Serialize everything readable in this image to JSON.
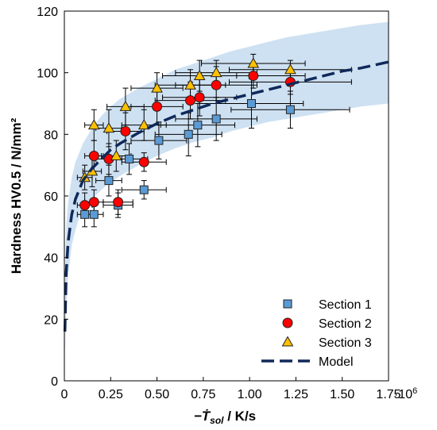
{
  "chart_data": {
    "type": "scatter",
    "ylabel": "Hardness HV0.5 / N/mm²",
    "xlabel": {
      "main": "−Ṫ",
      "sub": "sol",
      "unit": " / K/s"
    },
    "x_multiplier_label": "·10",
    "x_multiplier_exp": "6",
    "xlim": [
      0,
      1.75
    ],
    "ylim": [
      0,
      120
    ],
    "xticks": [
      "0",
      "0.25",
      "0.50",
      "0.75",
      "1.00",
      "1.25",
      "1.50",
      "1.75"
    ],
    "xtick_values": [
      0,
      0.25,
      0.5,
      0.75,
      1.0,
      1.25,
      1.5,
      1.75
    ],
    "yticks": [
      "0",
      "20",
      "40",
      "60",
      "80",
      "100",
      "120"
    ],
    "ytick_values": [
      0,
      20,
      40,
      60,
      80,
      100,
      120
    ],
    "grid": false,
    "legend_position": "bottom-right",
    "colors": {
      "section1": "#5b9bd5",
      "section2": "#ff0000",
      "section3": "#ffc000",
      "model": "#10295a",
      "band": "#c5dcf0"
    },
    "series": [
      {
        "name": "Section 1",
        "marker": "square",
        "points": [
          {
            "x": 0.11,
            "y": 54,
            "xerr": 0.04,
            "yerr": 4
          },
          {
            "x": 0.16,
            "y": 54,
            "xerr": 0.05,
            "yerr": 4
          },
          {
            "x": 0.24,
            "y": 65,
            "xerr": 0.07,
            "yerr": 5
          },
          {
            "x": 0.29,
            "y": 57,
            "xerr": 0.08,
            "yerr": 4
          },
          {
            "x": 0.35,
            "y": 72,
            "xerr": 0.1,
            "yerr": 5
          },
          {
            "x": 0.43,
            "y": 62,
            "xerr": 0.12,
            "yerr": 3
          },
          {
            "x": 0.51,
            "y": 78,
            "xerr": 0.15,
            "yerr": 6
          },
          {
            "x": 0.67,
            "y": 80,
            "xerr": 0.18,
            "yerr": 7
          },
          {
            "x": 0.72,
            "y": 83,
            "xerr": 0.2,
            "yerr": 7
          },
          {
            "x": 0.82,
            "y": 85,
            "xerr": 0.22,
            "yerr": 7
          },
          {
            "x": 1.01,
            "y": 90,
            "xerr": 0.28,
            "yerr": 8
          },
          {
            "x": 1.22,
            "y": 88,
            "xerr": 0.32,
            "yerr": 6
          }
        ]
      },
      {
        "name": "Section 2",
        "marker": "circle",
        "points": [
          {
            "x": 0.11,
            "y": 57,
            "xerr": 0.04,
            "yerr": 4
          },
          {
            "x": 0.16,
            "y": 58,
            "xerr": 0.05,
            "yerr": 4
          },
          {
            "x": 0.16,
            "y": 73,
            "xerr": 0.05,
            "yerr": 5
          },
          {
            "x": 0.24,
            "y": 72,
            "xerr": 0.07,
            "yerr": 5
          },
          {
            "x": 0.29,
            "y": 58,
            "xerr": 0.08,
            "yerr": 4
          },
          {
            "x": 0.33,
            "y": 81,
            "xerr": 0.1,
            "yerr": 6
          },
          {
            "x": 0.43,
            "y": 71,
            "xerr": 0.12,
            "yerr": 3
          },
          {
            "x": 0.5,
            "y": 89,
            "xerr": 0.14,
            "yerr": 6
          },
          {
            "x": 0.68,
            "y": 91,
            "xerr": 0.19,
            "yerr": 6
          },
          {
            "x": 0.73,
            "y": 92,
            "xerr": 0.2,
            "yerr": 6
          },
          {
            "x": 0.82,
            "y": 96,
            "xerr": 0.22,
            "yerr": 6
          },
          {
            "x": 1.02,
            "y": 99,
            "xerr": 0.28,
            "yerr": 4
          },
          {
            "x": 1.22,
            "y": 97,
            "xerr": 0.33,
            "yerr": 4
          }
        ]
      },
      {
        "name": "Section 3",
        "marker": "triangle",
        "points": [
          {
            "x": 0.11,
            "y": 66,
            "xerr": 0.04,
            "yerr": 4
          },
          {
            "x": 0.15,
            "y": 68,
            "xerr": 0.05,
            "yerr": 5
          },
          {
            "x": 0.16,
            "y": 83,
            "xerr": 0.05,
            "yerr": 5
          },
          {
            "x": 0.24,
            "y": 82,
            "xerr": 0.07,
            "yerr": 6
          },
          {
            "x": 0.28,
            "y": 73,
            "xerr": 0.08,
            "yerr": 5
          },
          {
            "x": 0.33,
            "y": 89,
            "xerr": 0.1,
            "yerr": 6
          },
          {
            "x": 0.43,
            "y": 83,
            "xerr": 0.12,
            "yerr": 5
          },
          {
            "x": 0.5,
            "y": 95,
            "xerr": 0.14,
            "yerr": 5
          },
          {
            "x": 0.68,
            "y": 96,
            "xerr": 0.19,
            "yerr": 5
          },
          {
            "x": 0.73,
            "y": 99,
            "xerr": 0.2,
            "yerr": 5
          },
          {
            "x": 0.82,
            "y": 100,
            "xerr": 0.22,
            "yerr": 4
          },
          {
            "x": 1.02,
            "y": 103,
            "xerr": 0.28,
            "yerr": 3
          },
          {
            "x": 1.22,
            "y": 101,
            "xerr": 0.33,
            "yerr": 3
          }
        ]
      },
      {
        "name": "Model",
        "type": "line",
        "style": "dashed",
        "x": [
          0.003,
          0.01,
          0.02,
          0.04,
          0.06,
          0.08,
          0.1,
          0.15,
          0.2,
          0.25,
          0.3,
          0.4,
          0.5,
          0.6,
          0.7,
          0.8,
          0.9,
          1.0,
          1.1,
          1.2,
          1.3,
          1.4,
          1.5,
          1.6,
          1.75
        ],
        "y": [
          16,
          35,
          45,
          54,
          59,
          62,
          65,
          69,
          72,
          75,
          77,
          80.5,
          83.5,
          86,
          88,
          90,
          91.5,
          93,
          94.5,
          96,
          97.5,
          99,
          100.5,
          101.5,
          103.5
        ],
        "band_upper": [
          30,
          50,
          58,
          66,
          71,
          74,
          77,
          82,
          86,
          89,
          91.5,
          95,
          98,
          101,
          103,
          105,
          107,
          108.5,
          110,
          111.5,
          112.5,
          113.5,
          114.5,
          115.5,
          116.5
        ],
        "band_lower": [
          8,
          24,
          34,
          44,
          49,
          53,
          55,
          59,
          62,
          64.5,
          66.5,
          70,
          73,
          75.5,
          77.5,
          79,
          81,
          82.5,
          84,
          85,
          86,
          87,
          88,
          89,
          90
        ]
      }
    ]
  }
}
